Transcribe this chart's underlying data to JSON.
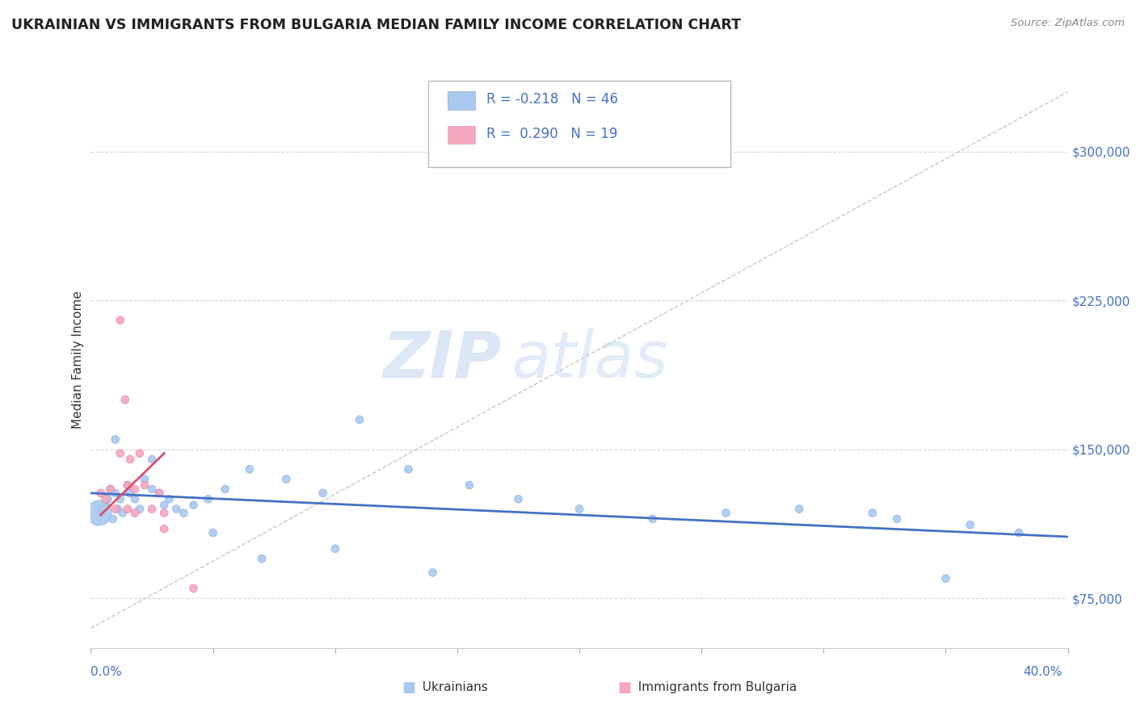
{
  "title": "UKRAINIAN VS IMMIGRANTS FROM BULGARIA MEDIAN FAMILY INCOME CORRELATION CHART",
  "source": "Source: ZipAtlas.com",
  "ylabel": "Median Family Income",
  "watermark_zip": "ZIP",
  "watermark_atlas": "atlas",
  "legend_blue_label": "Ukrainians",
  "legend_pink_label": "Immigrants from Bulgaria",
  "legend_blue_R": "R = -0.218",
  "legend_blue_N": "N = 46",
  "legend_pink_R": "R =  0.290",
  "legend_pink_N": "N = 19",
  "yticks": [
    75000,
    150000,
    225000,
    300000
  ],
  "ytick_labels": [
    "$75,000",
    "$150,000",
    "$225,000",
    "$300,000"
  ],
  "xlim": [
    0.0,
    0.4
  ],
  "ylim": [
    50000,
    340000
  ],
  "blue_color": "#aac9f0",
  "pink_color": "#f5a8c0",
  "blue_line_color": "#4472c4",
  "pink_line_color": "#d9506a",
  "dashed_line_color": "#c8c8c8",
  "blue_scatter_x": [
    0.003,
    0.005,
    0.006,
    0.007,
    0.008,
    0.009,
    0.01,
    0.011,
    0.012,
    0.013,
    0.015,
    0.016,
    0.018,
    0.02,
    0.022,
    0.025,
    0.028,
    0.03,
    0.032,
    0.035,
    0.038,
    0.042,
    0.048,
    0.055,
    0.065,
    0.08,
    0.095,
    0.11,
    0.13,
    0.155,
    0.175,
    0.2,
    0.23,
    0.26,
    0.29,
    0.33,
    0.36,
    0.38,
    0.01,
    0.025,
    0.05,
    0.07,
    0.1,
    0.14,
    0.32,
    0.35
  ],
  "blue_scatter_y": [
    120000,
    118000,
    122000,
    125000,
    130000,
    115000,
    128000,
    120000,
    125000,
    118000,
    132000,
    128000,
    125000,
    120000,
    135000,
    130000,
    128000,
    122000,
    125000,
    120000,
    118000,
    122000,
    125000,
    130000,
    140000,
    135000,
    128000,
    165000,
    140000,
    132000,
    125000,
    120000,
    115000,
    118000,
    120000,
    115000,
    112000,
    108000,
    155000,
    145000,
    108000,
    95000,
    100000,
    88000,
    118000,
    85000
  ],
  "blue_scatter_size": [
    50,
    50,
    50,
    50,
    50,
    50,
    50,
    50,
    50,
    50,
    50,
    50,
    50,
    50,
    50,
    50,
    50,
    50,
    50,
    50,
    50,
    50,
    50,
    50,
    50,
    50,
    50,
    50,
    50,
    50,
    50,
    50,
    50,
    50,
    50,
    50,
    50,
    50,
    50,
    50,
    50,
    50,
    50,
    50,
    50,
    50
  ],
  "blue_big_x": [
    0.003
  ],
  "blue_big_y": [
    118000
  ],
  "blue_big_size": [
    500
  ],
  "pink_scatter_x": [
    0.004,
    0.006,
    0.008,
    0.01,
    0.012,
    0.014,
    0.016,
    0.018,
    0.02,
    0.022,
    0.025,
    0.028,
    0.03,
    0.012,
    0.015,
    0.015,
    0.018,
    0.03,
    0.042
  ],
  "pink_scatter_y": [
    128000,
    125000,
    130000,
    120000,
    148000,
    175000,
    145000,
    130000,
    148000,
    132000,
    120000,
    128000,
    118000,
    215000,
    132000,
    120000,
    118000,
    110000,
    80000
  ],
  "pink_scatter_size": [
    50,
    50,
    50,
    50,
    50,
    50,
    50,
    50,
    50,
    50,
    50,
    50,
    50,
    50,
    50,
    50,
    50,
    50,
    50
  ],
  "blue_trend_x": [
    0.0,
    0.4
  ],
  "blue_trend_y": [
    128000,
    106000
  ],
  "pink_trend_x": [
    0.004,
    0.03
  ],
  "pink_trend_y": [
    117000,
    148000
  ],
  "dashed_trend_x": [
    0.0,
    0.4
  ],
  "dashed_trend_y": [
    60000,
    330000
  ]
}
